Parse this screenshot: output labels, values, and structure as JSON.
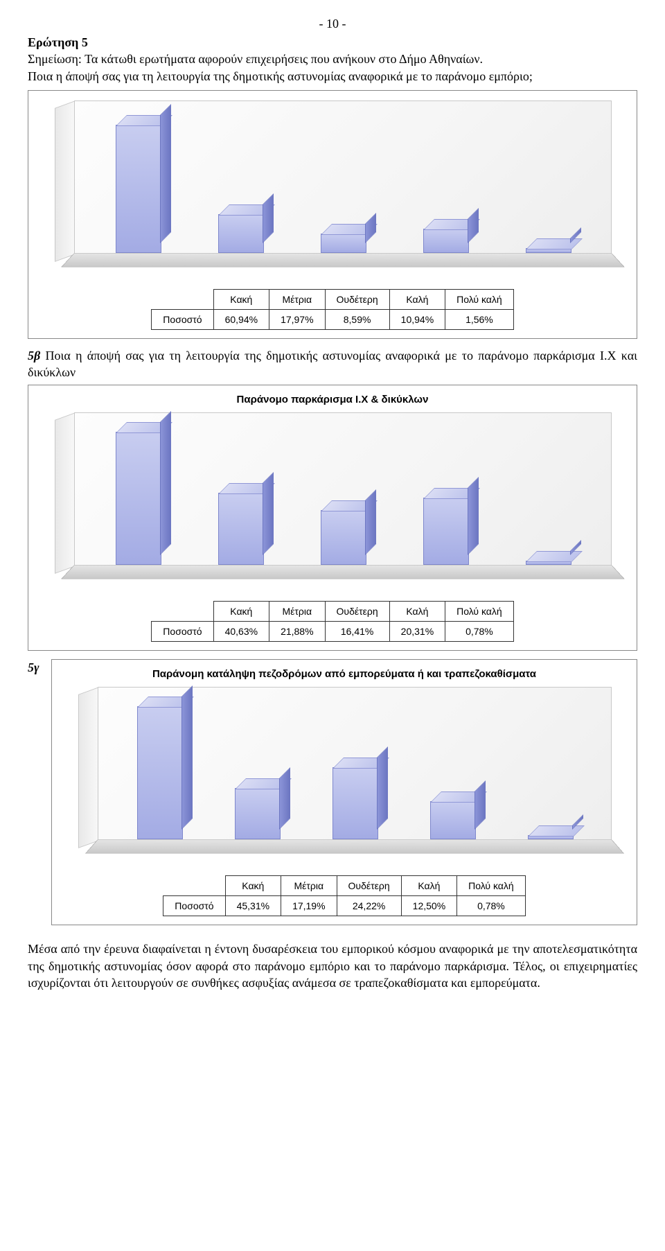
{
  "page_number": "- 10 -",
  "question5_heading": "Ερώτηση 5",
  "question5_note": "Σημείωση: Τα κάτωθι ερωτήματα αφορούν επιχειρήσεις που ανήκουν στο Δήμο Αθηναίων.",
  "question5_text": "Ποια η άποψή σας για τη λειτουργία της δημοτικής αστυνομίας αναφορικά με το παράνομο εμπόριο;",
  "chart_scale_max": 70,
  "row_label": "Ποσοστό",
  "categories": [
    "Κακή",
    "Μέτρια",
    "Ουδέτερη",
    "Καλή",
    "Πολύ καλή"
  ],
  "chart1": {
    "values_numeric": [
      60.94,
      17.97,
      8.59,
      10.94,
      1.56
    ],
    "values": [
      "60,94%",
      "17,97%",
      "8,59%",
      "10,94%",
      "1,56%"
    ]
  },
  "q5b_label_prefix": "5β",
  "q5b_text": " Ποια η άποψή σας για τη λειτουργία της δημοτικής αστυνομίας αναφορικά με το παράνομο παρκάρισμα Ι.Χ και δικύκλων",
  "chart2_title": "Παράνομο παρκάρισμα Ι.Χ & δικύκλων",
  "chart2": {
    "scale_max": 45,
    "values_numeric": [
      40.63,
      21.88,
      16.41,
      20.31,
      0.78
    ],
    "values": [
      "40,63%",
      "21,88%",
      "16,41%",
      "20,31%",
      "0,78%"
    ]
  },
  "q5g_label": "5γ",
  "chart3_title": "Παράνομη κατάληψη πεζοδρόμων από εμπορεύματα ή και τραπεζοκαθίσματα",
  "chart3": {
    "scale_max": 50,
    "values_numeric": [
      45.31,
      17.19,
      24.22,
      12.5,
      0.78
    ],
    "values": [
      "45,31%",
      "17,19%",
      "24,22%",
      "12,50%",
      "0,78%"
    ]
  },
  "body_paragraph": "Μέσα από την έρευνα διαφαίνεται η έντονη δυσαρέσκεια του εμπορικού κόσμου αναφορικά με την αποτελεσματικότητα της δημοτικής αστυνομίας όσον αφορά στο παράνομο εμπόριο και το παράνομο παρκάρισμα. Τέλος, οι επιχειρηματίες ισχυρίζονται ότι λειτουργούν σε συνθήκες ασφυξίας ανάμεσα σε τραπεζοκαθίσματα και εμπορεύματα.",
  "bar_colors": {
    "front_top": "#c8cdf0",
    "front_bottom": "#a3abe4",
    "side": "#6d77c2",
    "top": "#d9dcf4",
    "border": "#7e87cc"
  },
  "wall_color": "#f5f5f5",
  "floor_color": "#d5d5d5",
  "text_color": "#000000",
  "table_border": "#333333"
}
